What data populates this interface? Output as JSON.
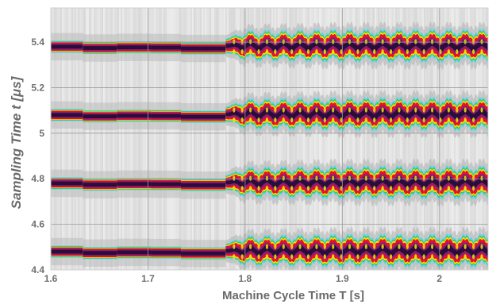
{
  "chart_data": {
    "type": "heatmap",
    "title": "",
    "xlabel": "Machine Cycle Time   T [s]",
    "ylabel": "Sampling Time     t [μs]",
    "xlim": [
      1.6,
      2.05
    ],
    "ylim": [
      4.4,
      5.55
    ],
    "x_ticks": [
      {
        "value": 1.6,
        "label": "1.6"
      },
      {
        "value": 1.7,
        "label": "1.7"
      },
      {
        "value": 1.8,
        "label": "1.8"
      },
      {
        "value": 1.9,
        "label": "1.9"
      },
      {
        "value": 2.0,
        "label": "2"
      }
    ],
    "y_ticks": [
      {
        "value": 4.4,
        "label": "4.4"
      },
      {
        "value": 4.6,
        "label": "4.6"
      },
      {
        "value": 4.8,
        "label": "4.8"
      },
      {
        "value": 5.0,
        "label": "5"
      },
      {
        "value": 5.2,
        "label": "5.2"
      },
      {
        "value": 5.4,
        "label": "5.4"
      }
    ],
    "grid": true,
    "bands": [
      {
        "center": 5.38
      },
      {
        "center": 5.08
      },
      {
        "center": 4.78
      },
      {
        "center": 4.48
      }
    ],
    "regime_change_x": 1.78,
    "oscillation_period": 0.0085,
    "colors": {
      "background": "#e6e6e6",
      "core_low": "#2a0d3a",
      "core_mid": "#8c1e6e",
      "core_high": "#e8112d",
      "edge_yellow": "#f2e600",
      "edge_green": "#39c46a",
      "edge_cyan": "#5fd3e6",
      "grid": "#9a9a9a"
    }
  }
}
